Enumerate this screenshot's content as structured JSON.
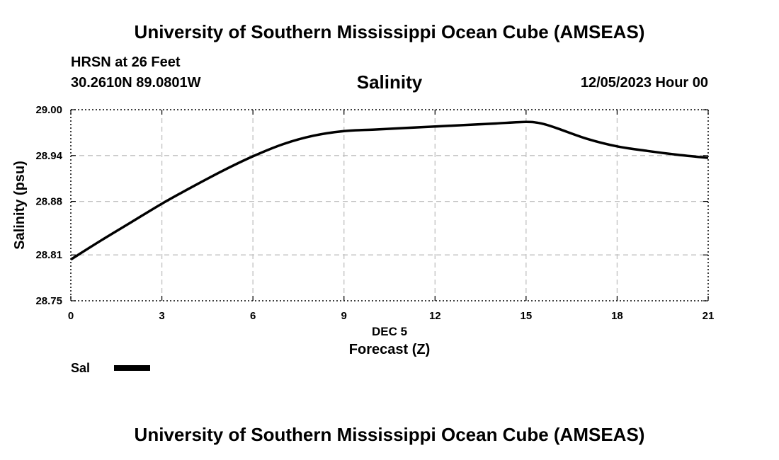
{
  "header": {
    "top_title": "University of Southern Mississippi Ocean Cube (AMSEAS)",
    "station": "HRSN at 26 Feet",
    "coords": "30.2610N  89.0801W",
    "datetime": "12/05/2023 Hour 00"
  },
  "footer": {
    "bottom_title": "University of Southern Mississippi Ocean Cube (AMSEAS)"
  },
  "legend": {
    "label": "Sal"
  },
  "chart_data": {
    "type": "line",
    "title": "Salinity",
    "xlabel": "Forecast (Z)",
    "date_label": "DEC 5",
    "ylabel": "Salinity (psu)",
    "xlim": [
      0,
      21
    ],
    "ylim": [
      28.75,
      29.0
    ],
    "x_ticks": [
      0,
      3,
      6,
      9,
      12,
      15,
      18,
      21
    ],
    "x_tick_labels": [
      "0",
      "3",
      "6",
      "9",
      "12",
      "15",
      "18",
      "21"
    ],
    "y_ticks": [
      28.75,
      28.81,
      28.88,
      28.94,
      29.0
    ],
    "y_tick_labels": [
      "28.75",
      "28.81",
      "28.88",
      "28.94",
      "29.00"
    ],
    "grid": true,
    "series": [
      {
        "name": "Sal",
        "color": "#000000",
        "x": [
          0,
          1,
          2,
          3,
          4,
          5,
          6,
          7,
          8,
          9,
          10,
          11,
          12,
          13,
          14,
          15,
          15.5,
          16,
          17,
          18,
          19,
          20,
          21
        ],
        "values": [
          28.804,
          28.829,
          28.853,
          28.877,
          28.899,
          28.92,
          28.939,
          28.955,
          28.966,
          28.972,
          28.974,
          28.976,
          28.978,
          28.98,
          28.982,
          28.984,
          28.982,
          28.976,
          28.962,
          28.952,
          28.946,
          28.941,
          28.937
        ]
      }
    ]
  }
}
